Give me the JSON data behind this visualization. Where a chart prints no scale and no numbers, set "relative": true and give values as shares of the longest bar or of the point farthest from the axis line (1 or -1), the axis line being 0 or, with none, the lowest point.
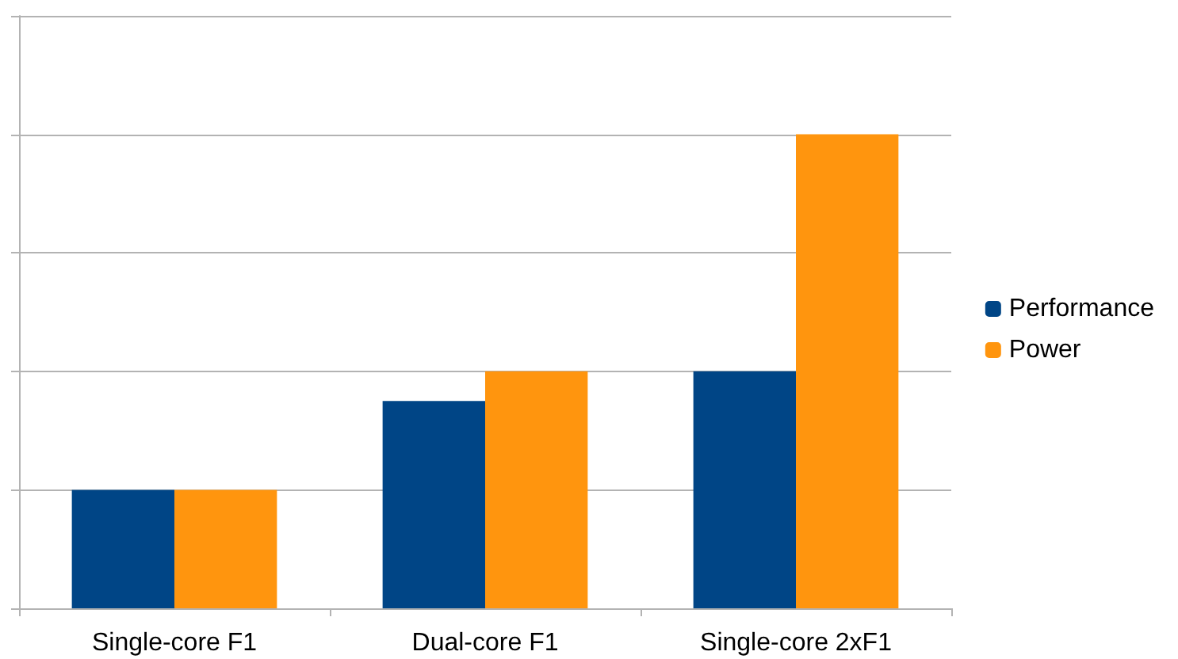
{
  "chart_data": {
    "type": "bar",
    "relative": true,
    "categories": [
      "Single-core F1",
      "Dual-core F1",
      "Single-core 2xF1"
    ],
    "series": [
      {
        "name": "Performance",
        "color": "#004586",
        "values": [
          0.25,
          0.4375,
          0.5
        ]
      },
      {
        "name": "Power",
        "color": "#ff950e",
        "values": [
          0.25,
          0.5,
          1
        ]
      }
    ],
    "grid": "y",
    "legend": "right"
  }
}
